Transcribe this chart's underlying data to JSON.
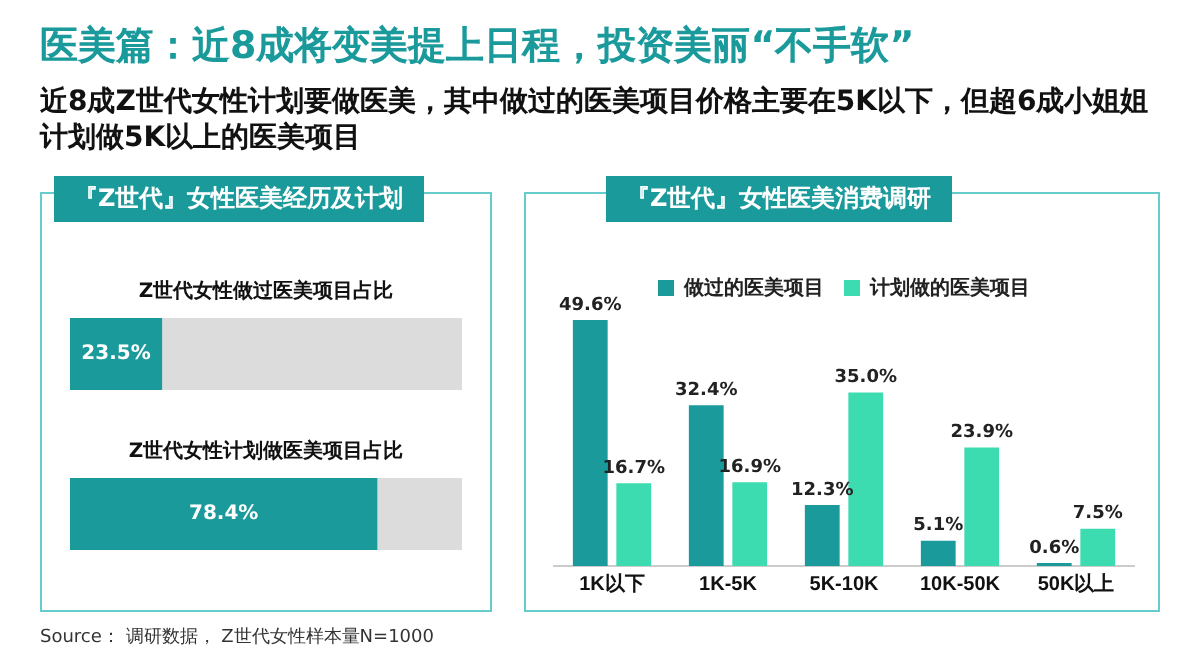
{
  "chart_data": [
    {
      "type": "other",
      "title": "医美篇：近8成将变美提上日程，投资美丽“不手软”",
      "subtitle": "近8成Z世代女性计划要做医美，其中做过的医美项目价格主要在5K以下，但超6成小姐姐计划做5K以上的医美项目",
      "annotations": [
        "Source： 调研数据， Z世代女性样本量N=1000"
      ]
    },
    {
      "type": "bar",
      "orientation": "horizontal",
      "title": "『Z世代』女性医美经历及计划",
      "categories": [
        "Z世代女性做过医美项目占比",
        "Z世代女性计划做医美项目占比"
      ],
      "values": [
        23.5,
        78.4
      ],
      "value_labels": [
        "23.5%",
        "78.4%"
      ],
      "color": "#1b9a9c",
      "xlim": [
        0,
        100
      ],
      "tick_labels": false,
      "grid": false,
      "legend": false
    },
    {
      "type": "bar",
      "title": "『Z世代』女性医美消费调研",
      "categories": [
        "1K以下",
        "1K-5K",
        "5K-10K",
        "10K-50K",
        "50K以上"
      ],
      "series": [
        {
          "name": "做过的医美项目",
          "color": "#1b9a9c",
          "values": [
            49.6,
            32.4,
            12.3,
            5.1,
            0.6
          ],
          "value_labels": [
            "49.6%",
            "32.4%",
            "12.3%",
            "5.1%",
            "0.6%"
          ]
        },
        {
          "name": "计划做的医美项目",
          "color": "#3ddbb0",
          "values": [
            16.7,
            16.9,
            35.0,
            23.9,
            7.5
          ],
          "value_labels": [
            "16.7%",
            "16.9%",
            "35.0%",
            "23.9%",
            "7.5%"
          ]
        }
      ],
      "tick_labels": "x",
      "grid": false,
      "legend": "top"
    }
  ]
}
